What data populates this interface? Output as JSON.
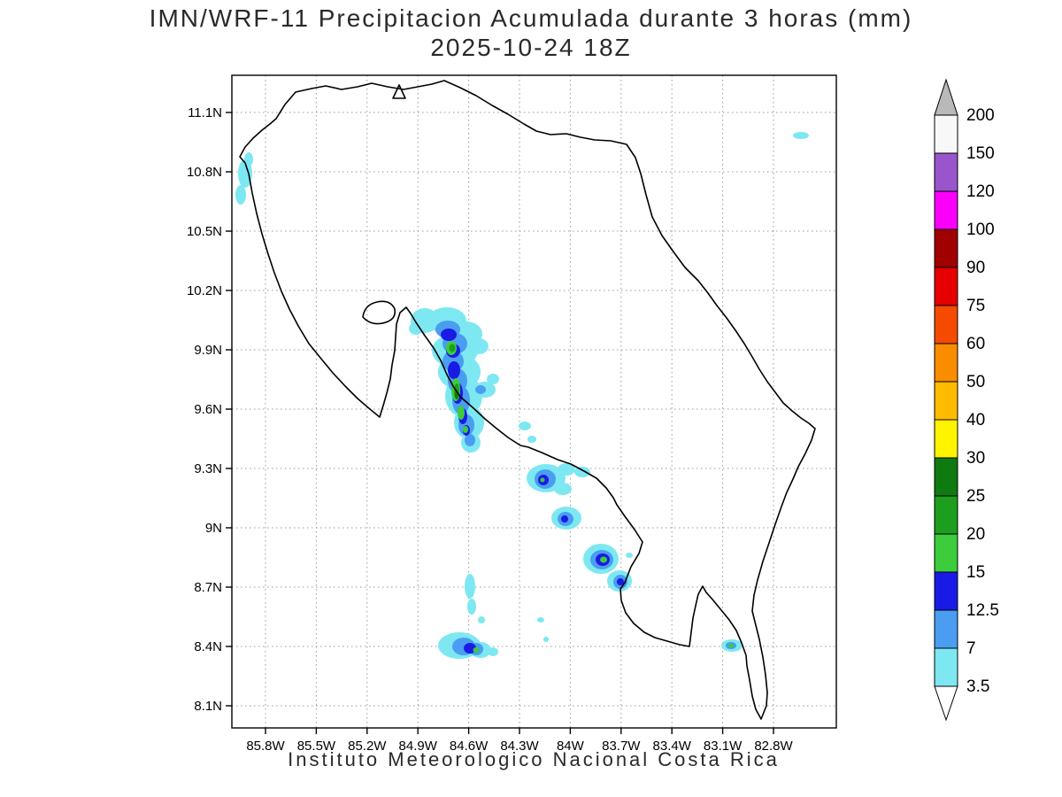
{
  "title": {
    "line1": "IMN/WRF-11 Precipitacion Acumulada durante 3 horas (mm)",
    "line2": "2025-10-24 18Z"
  },
  "footer": "Instituto Meteorologico Nacional Costa Rica",
  "axes": {
    "lat_labels": [
      "11.1N",
      "10.8N",
      "10.5N",
      "10.2N",
      "9.9N",
      "9.6N",
      "9.3N",
      "9N",
      "8.7N",
      "8.4N",
      "8.1N"
    ],
    "lon_labels": [
      "85.8W",
      "85.5W",
      "85.2W",
      "84.9W",
      "84.6W",
      "84.3W",
      "84W",
      "83.7W",
      "83.4W",
      "83.1W",
      "82.8W"
    ]
  },
  "colorbar": {
    "boundary_labels": [
      "200",
      "150",
      "120",
      "100",
      "90",
      "75",
      "60",
      "50",
      "40",
      "30",
      "25",
      "20",
      "15",
      "12.5",
      "7",
      "3.5"
    ],
    "segment_colors_top_to_bottom": [
      "#f8f8f8",
      "#9955cb",
      "#fa00fa",
      "#a00000",
      "#e60000",
      "#f54b00",
      "#fa8c00",
      "#ffbb00",
      "#fff300",
      "#0f7a0f",
      "#1e9e1e",
      "#3ccc3c",
      "#1a1ae6",
      "#4a9df0",
      "#7de8f2"
    ],
    "over_arrow_color": "#b9b9b9",
    "under_arrow_color": "#ffffff"
  },
  "palette": {
    "lvl_3_5": "#7de8f2",
    "lvl_7": "#4a9df0",
    "lvl_12_5": "#1a1ae6",
    "lvl_15": "#3ccc3c",
    "lvl_20": "#1e9e1e",
    "lvl_25": "#0f7a0f"
  }
}
